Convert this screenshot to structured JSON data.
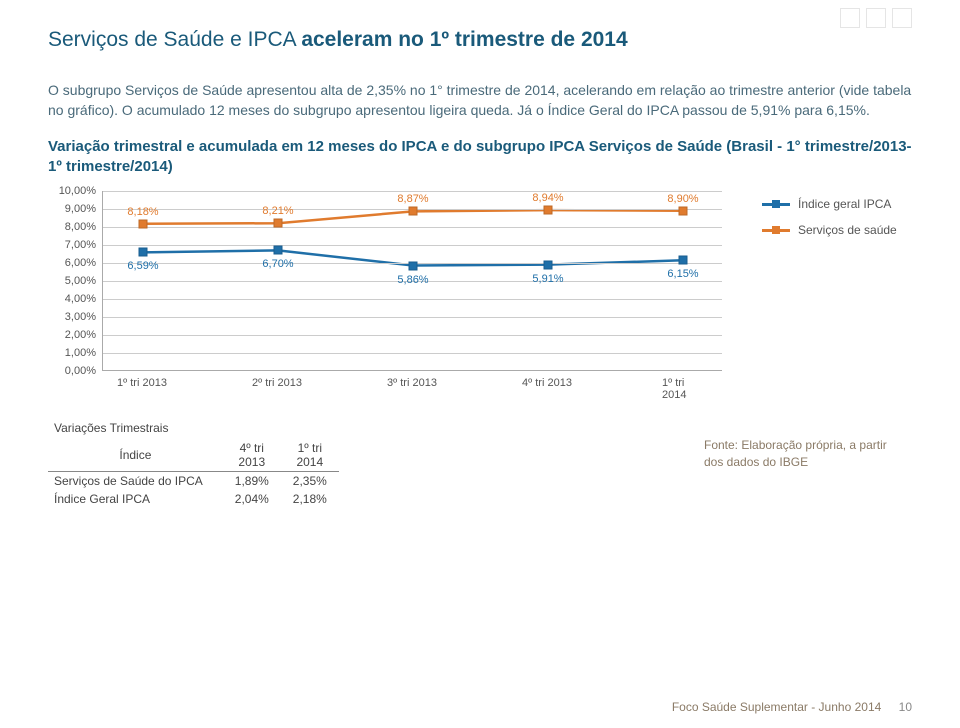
{
  "title_plain": "Serviços de Saúde e IPCA ",
  "title_bold": "aceleram no 1º trimestre de 2014",
  "para1": "O subgrupo Serviços de Saúde apresentou alta de 2,35% no 1° trimestre de 2014, acelerando em relação ao trimestre anterior (vide tabela no gráfico). O acumulado 12 meses do subgrupo apresentou ligeira queda. Já o Índice Geral do IPCA passou de 5,91% para 6,15%.",
  "subhead": "Variação trimestral e acumulada em 12 meses do IPCA e do subgrupo IPCA Serviços de Saúde (Brasil - 1° trimestre/2013-1º trimestre/2014)",
  "chart": {
    "type": "line",
    "y_ticks": [
      "10,00%",
      "9,00%",
      "8,00%",
      "7,00%",
      "6,00%",
      "5,00%",
      "4,00%",
      "3,00%",
      "2,00%",
      "1,00%",
      "0,00%"
    ],
    "y_max": 10,
    "x_labels": [
      "1º tri 2013",
      "2º tri 2013",
      "3º tri 2013",
      "4º tri 2013",
      "1º tri 2014"
    ],
    "series": [
      {
        "name": "Índice geral IPCA",
        "color": "#1f6fa8",
        "values": [
          6.59,
          6.7,
          5.86,
          5.91,
          6.15
        ],
        "labels": [
          "6,59%",
          "6,70%",
          "5,86%",
          "5,91%",
          "6,15%"
        ],
        "label_pos": "below"
      },
      {
        "name": "Serviços de saúde",
        "color": "#e07b2e",
        "values": [
          8.18,
          8.21,
          8.87,
          8.94,
          8.9
        ],
        "labels": [
          "8,18%",
          "8,21%",
          "8,87%",
          "8,94%",
          "8,90%"
        ],
        "label_pos": "above"
      }
    ]
  },
  "legend": {
    "items": [
      {
        "label": "Índice geral IPCA",
        "color": "#1f6fa8"
      },
      {
        "label": "Serviços de saúde",
        "color": "#e07b2e"
      }
    ]
  },
  "var_table": {
    "title": "Variações Trimestrais",
    "index_header": "Índice",
    "cols": [
      "4º tri 2013",
      "1º tri 2014"
    ],
    "rows": [
      {
        "label": "Serviços de Saúde do IPCA",
        "vals": [
          "1,89%",
          "2,35%"
        ]
      },
      {
        "label": "Índice Geral IPCA",
        "vals": [
          "2,04%",
          "2,18%"
        ]
      }
    ]
  },
  "fonte": "Fonte: Elaboração própria, a partir dos dados do IBGE",
  "footer_text": "Foco Saúde Suplementar - Junho 2014",
  "page_num": "10"
}
